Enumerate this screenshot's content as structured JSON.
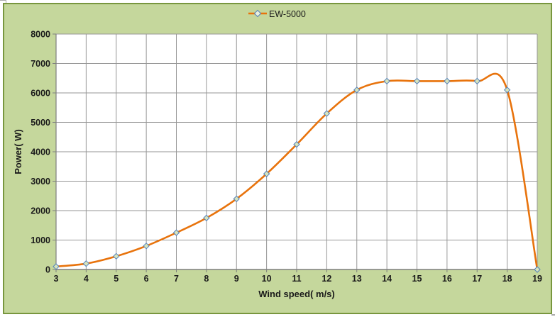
{
  "chart": {
    "colors": {
      "chart_area_fill": "#C5D79C",
      "chart_border": "#78963E",
      "plot_fill": "#FFFFFF",
      "gridline": "#969696",
      "axis_line": "#7F7F7F",
      "series_line": "#E8730C",
      "marker_fill": "#D7E4BC",
      "marker_stroke": "#5380BE",
      "text": "#1A1A1A"
    }
  },
  "chart_data": {
    "type": "line",
    "smooth": true,
    "marker": "diamond",
    "title": "",
    "xlabel": "Wind speed( m/s)",
    "ylabel": "Power( W)",
    "x": [
      3,
      4,
      5,
      6,
      7,
      8,
      9,
      10,
      11,
      12,
      13,
      14,
      15,
      16,
      17,
      18,
      19
    ],
    "series": [
      {
        "name": "EW-5000",
        "values": [
          100,
          200,
          450,
          800,
          1250,
          1750,
          2400,
          3250,
          4250,
          5300,
          6100,
          6400,
          6400,
          6400,
          6400,
          6100,
          0
        ]
      }
    ],
    "xlim": [
      3,
      19
    ],
    "ylim": [
      0,
      8000
    ],
    "xtick_interval": 1,
    "ytick_interval": 1000,
    "grid": true,
    "legend_position": "top"
  }
}
